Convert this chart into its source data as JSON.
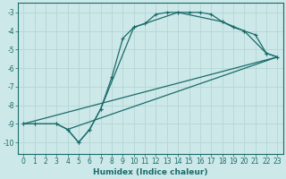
{
  "xlabel": "Humidex (Indice chaleur)",
  "bg_color": "#cde8e8",
  "grid_color": "#b8d8d8",
  "line_color": "#1a6b6b",
  "xlim": [
    -0.5,
    23.5
  ],
  "ylim": [
    -10.6,
    -2.5
  ],
  "yticks": [
    -10,
    -9,
    -8,
    -7,
    -6,
    -5,
    -4,
    -3
  ],
  "xticks": [
    0,
    1,
    2,
    3,
    4,
    5,
    6,
    7,
    8,
    9,
    10,
    11,
    12,
    13,
    14,
    15,
    16,
    17,
    18,
    19,
    20,
    21,
    22,
    23
  ],
  "curve1_x": [
    0,
    1,
    3,
    4,
    5,
    6,
    7,
    8,
    9,
    10,
    11,
    12,
    13,
    14,
    15,
    16,
    17,
    18,
    19,
    20,
    21,
    22,
    23
  ],
  "curve1_y": [
    -9.0,
    -9.0,
    -9.0,
    -9.3,
    -10.0,
    -9.3,
    -8.2,
    -6.5,
    -4.4,
    -3.8,
    -3.6,
    -3.1,
    -3.0,
    -3.0,
    -3.0,
    -3.0,
    -3.1,
    -3.5,
    -3.8,
    -4.0,
    -4.2,
    -5.2,
    -5.4
  ],
  "curve2_x": [
    0,
    1,
    3,
    4,
    5,
    6,
    7,
    10,
    14,
    18,
    20,
    22,
    23
  ],
  "curve2_y": [
    -9.0,
    -9.0,
    -9.0,
    -9.3,
    -10.0,
    -9.3,
    -8.2,
    -3.8,
    -3.0,
    -3.5,
    -4.0,
    -5.2,
    -5.4
  ],
  "line1_x": [
    0,
    23
  ],
  "line1_y": [
    -9.0,
    -5.4
  ],
  "line2_x": [
    4,
    23
  ],
  "line2_y": [
    -9.3,
    -5.4
  ]
}
